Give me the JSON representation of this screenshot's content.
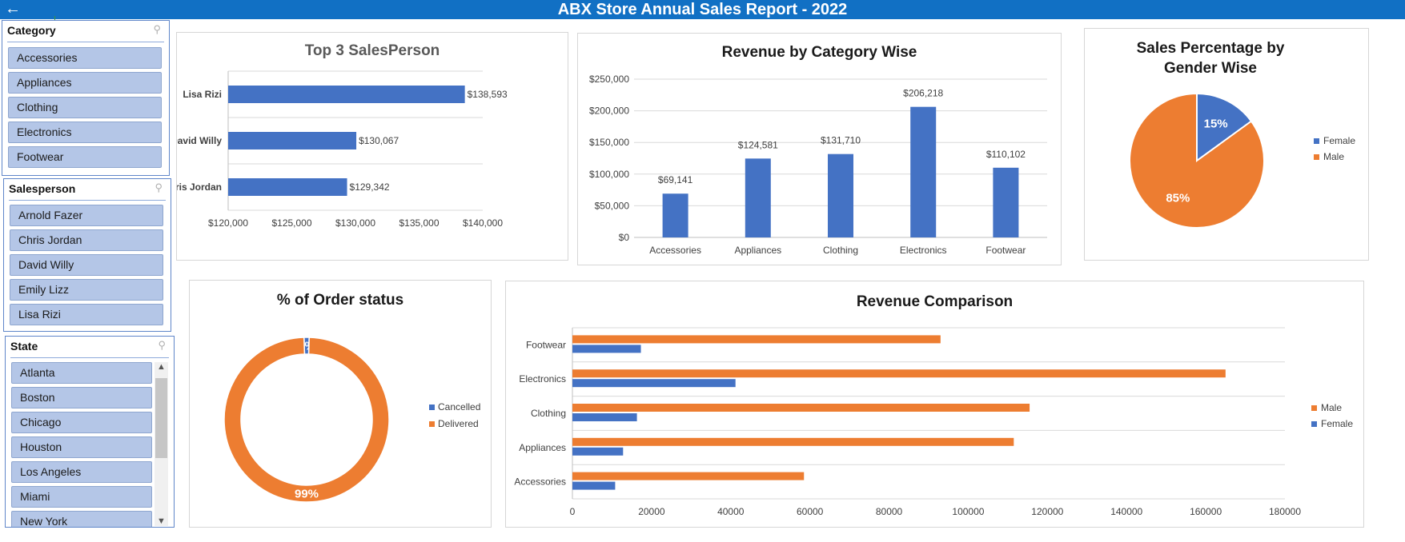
{
  "header": {
    "title": "ABX Store Annual Sales Report - 2022",
    "back_icon": "arrow-left-icon"
  },
  "slicers": {
    "category": {
      "title": "Category",
      "items": [
        "Accessories",
        "Appliances",
        "Clothing",
        "Electronics",
        "Footwear"
      ]
    },
    "salesperson": {
      "title": "Salesperson",
      "items": [
        "Arnold Fazer",
        "Chris Jordan",
        "David Willy",
        "Emily Lizz",
        "Lisa Rizi"
      ]
    },
    "state": {
      "title": "State",
      "items": [
        "Atlanta",
        "Boston",
        "Chicago",
        "Houston",
        "Los Angeles",
        "Miami",
        "New York"
      ]
    }
  },
  "colors": {
    "blue": "#4472c4",
    "orange": "#ed7d31",
    "header": "#1170c4",
    "slicer_item": "#b4c6e7"
  },
  "chart_data": [
    {
      "id": "top3",
      "type": "bar",
      "orientation": "horizontal",
      "title": "Top 3 SalesPerson",
      "categories": [
        "Chris Jordan",
        "David Willy",
        "Lisa Rizi"
      ],
      "values": [
        129342,
        130067,
        138593
      ],
      "value_labels": [
        "$129,342",
        "$130,067",
        "$138,593"
      ],
      "xlim": [
        120000,
        140000
      ],
      "ticks": [
        120000,
        125000,
        130000,
        135000,
        140000
      ],
      "tick_labels": [
        "$120,000",
        "$125,000",
        "$130,000",
        "$135,000",
        "$140,000"
      ],
      "grid": true,
      "color": "#4472c4"
    },
    {
      "id": "revcat",
      "type": "bar",
      "title": "Revenue by Category Wise",
      "categories": [
        "Accessories",
        "Appliances",
        "Clothing",
        "Electronics",
        "Footwear"
      ],
      "values": [
        69141,
        124581,
        131710,
        206218,
        110102
      ],
      "value_labels": [
        "$69,141",
        "$124,581",
        "$131,710",
        "$206,218",
        "$110,102"
      ],
      "ylim": [
        0,
        250000
      ],
      "ticks": [
        0,
        50000,
        100000,
        150000,
        200000,
        250000
      ],
      "tick_labels": [
        "$0",
        "$50,000",
        "$100,000",
        "$150,000",
        "$200,000",
        "$250,000"
      ],
      "grid": true,
      "color": "#4472c4"
    },
    {
      "id": "gender",
      "type": "pie",
      "title": "Sales Percentage by Gender Wise",
      "labels": [
        "Female",
        "Male"
      ],
      "values": [
        15,
        85
      ],
      "value_labels": [
        "15%",
        "85%"
      ],
      "colors": [
        "#4472c4",
        "#ed7d31"
      ],
      "legend": "right"
    },
    {
      "id": "orders",
      "type": "donut",
      "title": "% of Order status",
      "labels": [
        "Cancelled",
        "Delivered"
      ],
      "values": [
        1,
        99
      ],
      "value_labels": [
        "1%",
        "99%"
      ],
      "colors": [
        "#4472c4",
        "#ed7d31"
      ],
      "legend": "right"
    },
    {
      "id": "revcomp",
      "type": "bar",
      "orientation": "horizontal",
      "title": "Revenue Comparison",
      "categories": [
        "Accessories",
        "Appliances",
        "Clothing",
        "Electronics",
        "Footwear"
      ],
      "series": [
        {
          "name": "Male",
          "values": [
            58500,
            111500,
            115500,
            165000,
            93000
          ],
          "color": "#ed7d31"
        },
        {
          "name": "Female",
          "values": [
            10800,
            12800,
            16300,
            41200,
            17300
          ],
          "color": "#4472c4"
        }
      ],
      "xlim": [
        0,
        180000
      ],
      "ticks": [
        0,
        20000,
        40000,
        60000,
        80000,
        100000,
        120000,
        140000,
        160000,
        180000
      ],
      "tick_labels": [
        "0",
        "20000",
        "40000",
        "60000",
        "80000",
        "100000",
        "120000",
        "140000",
        "160000",
        "180000"
      ],
      "grid": true,
      "legend": "right"
    }
  ]
}
